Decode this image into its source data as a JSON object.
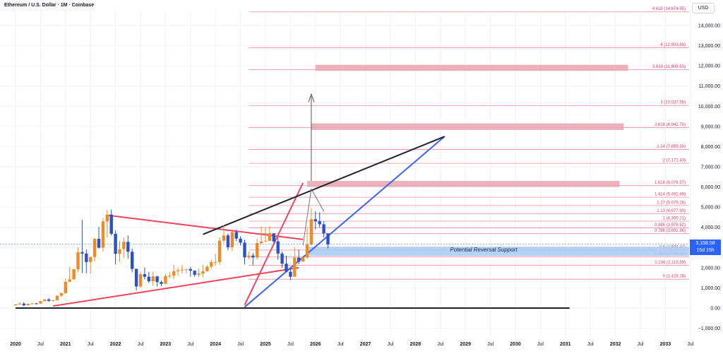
{
  "header": {
    "title": "Ethereum / U.S. Dollar · 1M · Coinbase",
    "currency": "USD"
  },
  "current_price": {
    "value": "3,158.58",
    "countdown": "15d 15h"
  },
  "colors": {
    "bull": "#f08a24",
    "bear": "#2951c8",
    "fib_line": "#f28b9b",
    "fib_text": "#d4426b",
    "zone": "#e8a4b0",
    "support_zone": "#a9c9f5",
    "trend_red": "#f0445b",
    "trend_blue": "#3a64f0",
    "trend_black": "#1e222d"
  },
  "chart_data": {
    "type": "candlestick",
    "title": "Ethereum / U.S. Dollar · 1M · Coinbase",
    "y_axis": {
      "min": -1000,
      "max": 15000,
      "ticks": [
        -1000,
        0,
        1000,
        2000,
        3000,
        4000,
        5000,
        6000,
        7000,
        8000,
        9000,
        10000,
        11000,
        12000,
        13000,
        14000
      ],
      "tick_labels": [
        "−1,000.00",
        "0.00",
        "1,000.00",
        "2,000.00",
        "3,000.00",
        "4,000.00",
        "5,000.00",
        "6,000.00",
        "7,000.00",
        "8,000.00",
        "9,000.00",
        "10,000.00",
        "11,000.00",
        "12,000.00",
        "13,000.00",
        "14,000.00"
      ]
    },
    "x_axis": {
      "labels": [
        "2020",
        "Jul",
        "2021",
        "Jul",
        "2022",
        "Jul",
        "2023",
        "Jul",
        "2024",
        "Jul",
        "2025",
        "Jul",
        "2026",
        "Jul",
        "2027",
        "Jul",
        "2028",
        "Jul",
        "2029",
        "Jul",
        "2030",
        "Jul",
        "2031",
        "Jul",
        "2032",
        "Jul",
        "2033",
        "Jul"
      ],
      "bold": [
        "2020",
        "2021",
        "2022",
        "2023",
        "2024",
        "2025",
        "2026",
        "2027",
        "2028",
        "2029",
        "2030",
        "2031",
        "2032",
        "2033"
      ]
    },
    "candles": {
      "start": "2020-01",
      "close": [
        180,
        220,
        135,
        210,
        230,
        225,
        345,
        430,
        360,
        385,
        615,
        740,
        1300,
        1420,
        1920,
        2770,
        2700,
        2280,
        2530,
        3430,
        2990,
        4290,
        4630,
        3680,
        2690,
        2920,
        3280,
        2790,
        1940,
        1070,
        1680,
        1550,
        1330,
        1570,
        1290,
        1200,
        1580,
        1600,
        1820,
        1870,
        1900,
        1930,
        1850,
        1650,
        1710,
        1820,
        2050,
        2280,
        2280,
        3340,
        3600,
        3010,
        3760,
        3440,
        3240,
        2510,
        2600,
        2510,
        3220,
        3300,
        3330,
        3700,
        3300,
        2700,
        2200,
        1800,
        1550,
        2500,
        2300,
        2500,
        3150,
        4400,
        4300,
        4150,
        3700,
        3150
      ],
      "high": [
        190,
        285,
        290,
        225,
        245,
        245,
        350,
        440,
        490,
        410,
        620,
        760,
        1470,
        2040,
        1950,
        3000,
        4370,
        2900,
        2550,
        3460,
        4030,
        4460,
        4870,
        4880,
        3850,
        3320,
        3500,
        3600,
        2950,
        1960,
        1790,
        2000,
        1800,
        1800,
        1600,
        1350,
        1680,
        1780,
        2140,
        2000,
        2130,
        1930,
        2030,
        1870,
        1950,
        2140,
        2130,
        2400,
        2700,
        3500,
        4100,
        3700,
        3800,
        3880,
        3560,
        3400,
        2800,
        2730,
        3440,
        4070,
        4000,
        4070,
        3700,
        3500,
        2800,
        2600,
        1950,
        3000,
        2900,
        2600,
        3940,
        4960,
        4800,
        4750,
        4300,
        3500
      ],
      "low": [
        130,
        175,
        90,
        130,
        180,
        190,
        220,
        340,
        315,
        320,
        400,
        550,
        715,
        1300,
        1420,
        1780,
        1730,
        1720,
        1700,
        2300,
        2950,
        2800,
        3500,
        3600,
        2160,
        2280,
        2480,
        2450,
        1780,
        880,
        1000,
        1420,
        1240,
        1100,
        1075,
        1080,
        1200,
        1460,
        1440,
        1630,
        1710,
        1700,
        1550,
        1550,
        1530,
        1520,
        1810,
        1960,
        2100,
        2150,
        3230,
        2870,
        2820,
        3310,
        3100,
        2160,
        2400,
        2120,
        2400,
        3130,
        3310,
        3370,
        3200,
        2400,
        2000,
        1760,
        1380,
        1570,
        2170,
        2300,
        2450,
        3100,
        3900,
        4000,
        3500,
        2950
      ]
    },
    "fibonacci": [
      {
        "level": "0",
        "price": 1429.18,
        "label": "0 (1,429.18)"
      },
      {
        "level": "0.236",
        "price": 2115.59,
        "label": "0.236 (2,115.59)"
      },
      {
        "level": "0.382",
        "price": 2534.04,
        "label": "0.382 (2,534.04)"
      },
      {
        "level": "0.5",
        "price": 2874.47,
        "label": "0.5 (2,874.47)"
      },
      {
        "level": "0.786",
        "price": 3691.96,
        "label": "0.786 (3,691.96)"
      },
      {
        "level": "0.886",
        "price": 3978.52,
        "label": "0.886 (3,978.52)"
      },
      {
        "level": "1",
        "price": 4305.21,
        "label": "1 (4,305.21)"
      },
      {
        "level": "1.13",
        "price": 4677.9,
        "label": "1.13 (4,677.90)"
      },
      {
        "level": "1.27",
        "price": 5079.16,
        "label": "1.27 (5,079.16)"
      },
      {
        "level": "1.414",
        "price": 5491.88,
        "label": "1.414 (5,491.88)"
      },
      {
        "level": "1.618",
        "price": 6076.57,
        "label": "1.618 (6,076.57)"
      },
      {
        "level": "2",
        "price": 7171.43,
        "label": "2 (7,171.43)"
      },
      {
        "level": "2.24",
        "price": 7859.3,
        "label": "2.24 (7,859.30)"
      },
      {
        "level": "2.618",
        "price": 8942.7,
        "label": "2.618 (8,942.70)"
      },
      {
        "level": "3",
        "price": 10037.56,
        "label": "3 (10,037.56)"
      },
      {
        "level": "3.618",
        "price": 11808.83,
        "label": "3.618 (11,808.83)"
      },
      {
        "level": "4",
        "price": 12903.69,
        "label": "4 (12,903.69)"
      },
      {
        "level": "4.618",
        "price": 14674.95,
        "label": "4.618 (14,674.95)"
      }
    ],
    "zones": [
      {
        "from": 6000,
        "to": 6300,
        "start": "2025-11",
        "end": "2032-02"
      },
      {
        "from": 8820,
        "to": 9150,
        "start": "2025-12",
        "end": "2032-03"
      },
      {
        "from": 11750,
        "to": 12050,
        "start": "2026-01",
        "end": "2032-04"
      }
    ],
    "support_zone": {
      "from": 2580,
      "to": 3040,
      "start": "2025-11",
      "end": "2033-12",
      "label": "Potential Reversal Support"
    },
    "trendlines": [
      {
        "name": "red-descending",
        "color": "#f0445b",
        "points": [
          [
            "2021-11",
            4600
          ],
          [
            "2025-10",
            3400
          ]
        ]
      },
      {
        "name": "red-ascending-lower",
        "color": "#f0445b",
        "points": [
          [
            "2020-10",
            100
          ],
          [
            "2025-09",
            2000
          ]
        ]
      },
      {
        "name": "red-steep",
        "color": "#f0445b",
        "points": [
          [
            "2024-08",
            150
          ],
          [
            "2025-10",
            6200
          ]
        ]
      },
      {
        "name": "blue-channel",
        "color": "#3a64f0",
        "points": [
          [
            "2024-08",
            50
          ],
          [
            "2028-08",
            8500
          ]
        ]
      },
      {
        "name": "black-rising",
        "color": "#1e222d",
        "points": [
          [
            "2023-10",
            3650
          ],
          [
            "2028-08",
            8500
          ]
        ]
      },
      {
        "name": "black-base",
        "color": "#1e222d",
        "points": [
          [
            "2020-01",
            0
          ],
          [
            "2031-02",
            0
          ]
        ]
      }
    ]
  }
}
